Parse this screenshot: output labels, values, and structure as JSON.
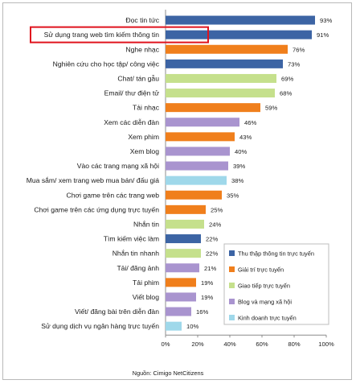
{
  "chart_data": {
    "type": "bar",
    "orientation": "horizontal",
    "categories": [
      "Đọc tin tức",
      "Sử dụng trang web tìm kiếm thông tin",
      "Nghe nhạc",
      "Nghiên cứu cho học tập/ công việc",
      "Chat/ tán gẫu",
      "Email/ thư điện tử",
      "Tải nhạc",
      "Xem các diễn đàn",
      "Xem phim",
      "Xem blog",
      "Vào các trang mạng xã hội",
      "Mua sắm/ xem trang web mua bán/ đấu giá",
      "Chơi game trên các trang web",
      "Chơi game trên các ứng dụng trực tuyến",
      "Nhắn tin",
      "Tìm kiếm việc làm",
      "Nhắn tin nhanh",
      "Tải/ đăng ảnh",
      "Tải phim",
      "Viết blog",
      "Viết/ đăng bài trên diễn đàn",
      "Sử dụng dịch vụ ngân hàng trực tuyến"
    ],
    "values": [
      93,
      91,
      76,
      73,
      69,
      68,
      59,
      46,
      43,
      40,
      39,
      38,
      35,
      25,
      24,
      22,
      22,
      21,
      19,
      19,
      16,
      10
    ],
    "value_labels": [
      "93%",
      "91%",
      "76%",
      "73%",
      "69%",
      "68%",
      "59%",
      "46%",
      "43%",
      "40%",
      "39%",
      "38%",
      "35%",
      "25%",
      "24%",
      "22%",
      "22%",
      "21%",
      "19%",
      "19%",
      "16%",
      "10%"
    ],
    "groups": [
      0,
      0,
      1,
      0,
      2,
      2,
      1,
      3,
      1,
      3,
      3,
      4,
      1,
      1,
      2,
      0,
      2,
      3,
      1,
      3,
      3,
      4
    ],
    "legend": [
      {
        "name": "Thu thập thông tin trực tuyến",
        "color": "#3c64a4"
      },
      {
        "name": "Giải trí trực tuyến",
        "color": "#f07f1c"
      },
      {
        "name": "Giao tiếp trực tuyến",
        "color": "#c5e08c"
      },
      {
        "name": "Blog và mạng xã hội",
        "color": "#a994cf"
      },
      {
        "name": "Kinh doanh trực tuyến",
        "color": "#9fd8ea"
      }
    ],
    "xlim": [
      0,
      100
    ],
    "xticks": [
      0,
      20,
      40,
      60,
      80,
      100
    ],
    "xtick_labels": [
      "0%",
      "20%",
      "40%",
      "60%",
      "80%",
      "100%"
    ],
    "grid": false,
    "legend_position": "right",
    "highlighted_category": "Sử dụng trang web tìm kiếm thông tin",
    "highlight_color": "#e0141e"
  },
  "source": "Nguồn: Cimigo NetCitizens"
}
